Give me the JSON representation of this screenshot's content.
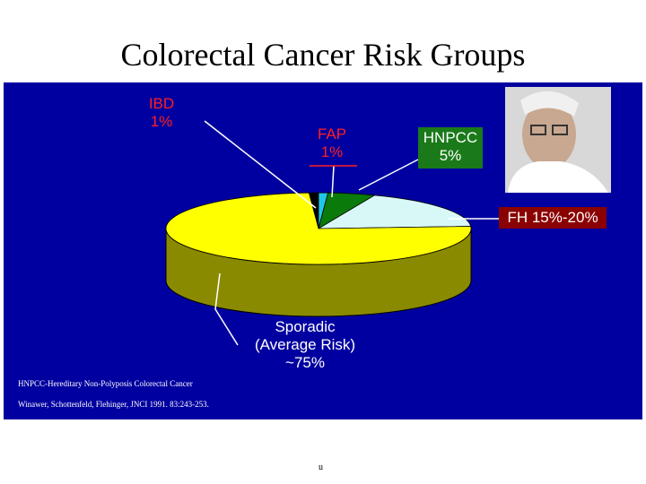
{
  "chart_data": {
    "type": "pie",
    "title": "Colorectal Cancer Risk Groups",
    "categories": [
      "IBD",
      "FAP",
      "HNPCC",
      "FH",
      "Sporadic (Average Risk)"
    ],
    "values": [
      1,
      1,
      5,
      18,
      75
    ],
    "value_labels": [
      "1%",
      "1%",
      "5%",
      "15%-20%",
      "~75%"
    ],
    "colors": [
      "#000000",
      "#20c8e8",
      "#0a7a0a",
      "#d8f8f8",
      "#ffff00"
    ]
  },
  "footnotes": [
    "HNPCC-Hereditary Non-Polyposis Colorectal Cancer",
    "Winawer, Schottenfeld, Flehinger, JNCI 1991. 83:243-253."
  ],
  "page_number": "u"
}
